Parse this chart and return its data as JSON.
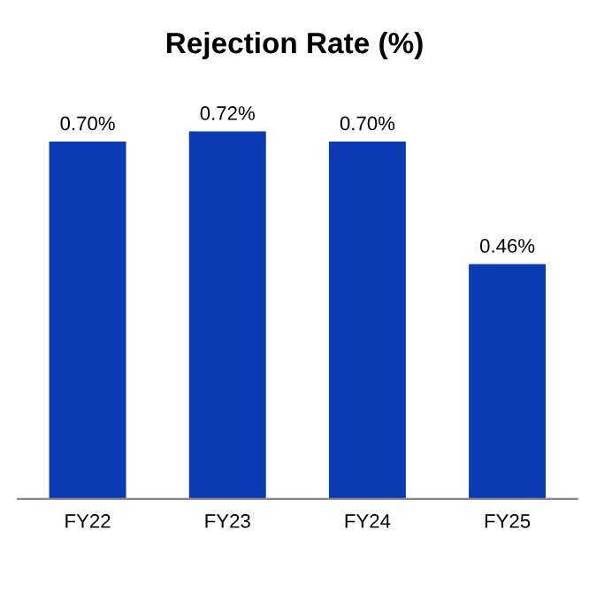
{
  "chart_data": {
    "type": "bar",
    "title": "Rejection Rate (%)",
    "categories": [
      "FY22",
      "FY23",
      "FY24",
      "FY25"
    ],
    "values": [
      0.7,
      0.72,
      0.7,
      0.46
    ],
    "value_labels": [
      "0.70%",
      "0.72%",
      "0.70%",
      "0.46%"
    ],
    "color": "#0b3bb5",
    "grid": false,
    "legend": false
  }
}
